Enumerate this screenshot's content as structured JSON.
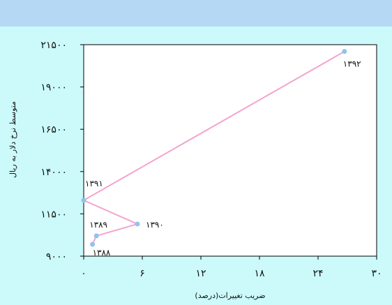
{
  "chart_data": {
    "type": "line",
    "xlabel": "ضریب تغییرات(درصد)",
    "ylabel": "متوسط نرخ دلار به ریال",
    "xlim": [
      0,
      30
    ],
    "ylim": [
      9000,
      21500
    ],
    "x_ticks": [
      0,
      6,
      12,
      18,
      24,
      30
    ],
    "y_ticks": [
      9000,
      11500,
      14000,
      16500,
      19000,
      21500
    ],
    "x_tick_labels": [
      "۰",
      "۶",
      "۱۲",
      "۱۸",
      "۲۴",
      "۳۰"
    ],
    "y_tick_labels": [
      "۹۰۰۰",
      "۱۱۵۰۰",
      "۱۴۰۰۰",
      "۱۶۵۰۰",
      "۱۹۰۰۰",
      "۲۱۵۰۰"
    ],
    "grid": false,
    "series": [
      {
        "color": "#f4a4cc",
        "marker_color": "#8fc3ee",
        "points": [
          {
            "label": "۱۳۸۸",
            "x": 0.9,
            "y": 9700
          },
          {
            "label": "۱۳۸۹",
            "x": 1.3,
            "y": 10200
          },
          {
            "label": "۱۳۹۰",
            "x": 5.5,
            "y": 10900
          },
          {
            "label": "۱۳۹۱",
            "x": 0.0,
            "y": 12300
          },
          {
            "label": "۱۳۹۲",
            "x": 26.7,
            "y": 21100
          }
        ]
      }
    ]
  }
}
